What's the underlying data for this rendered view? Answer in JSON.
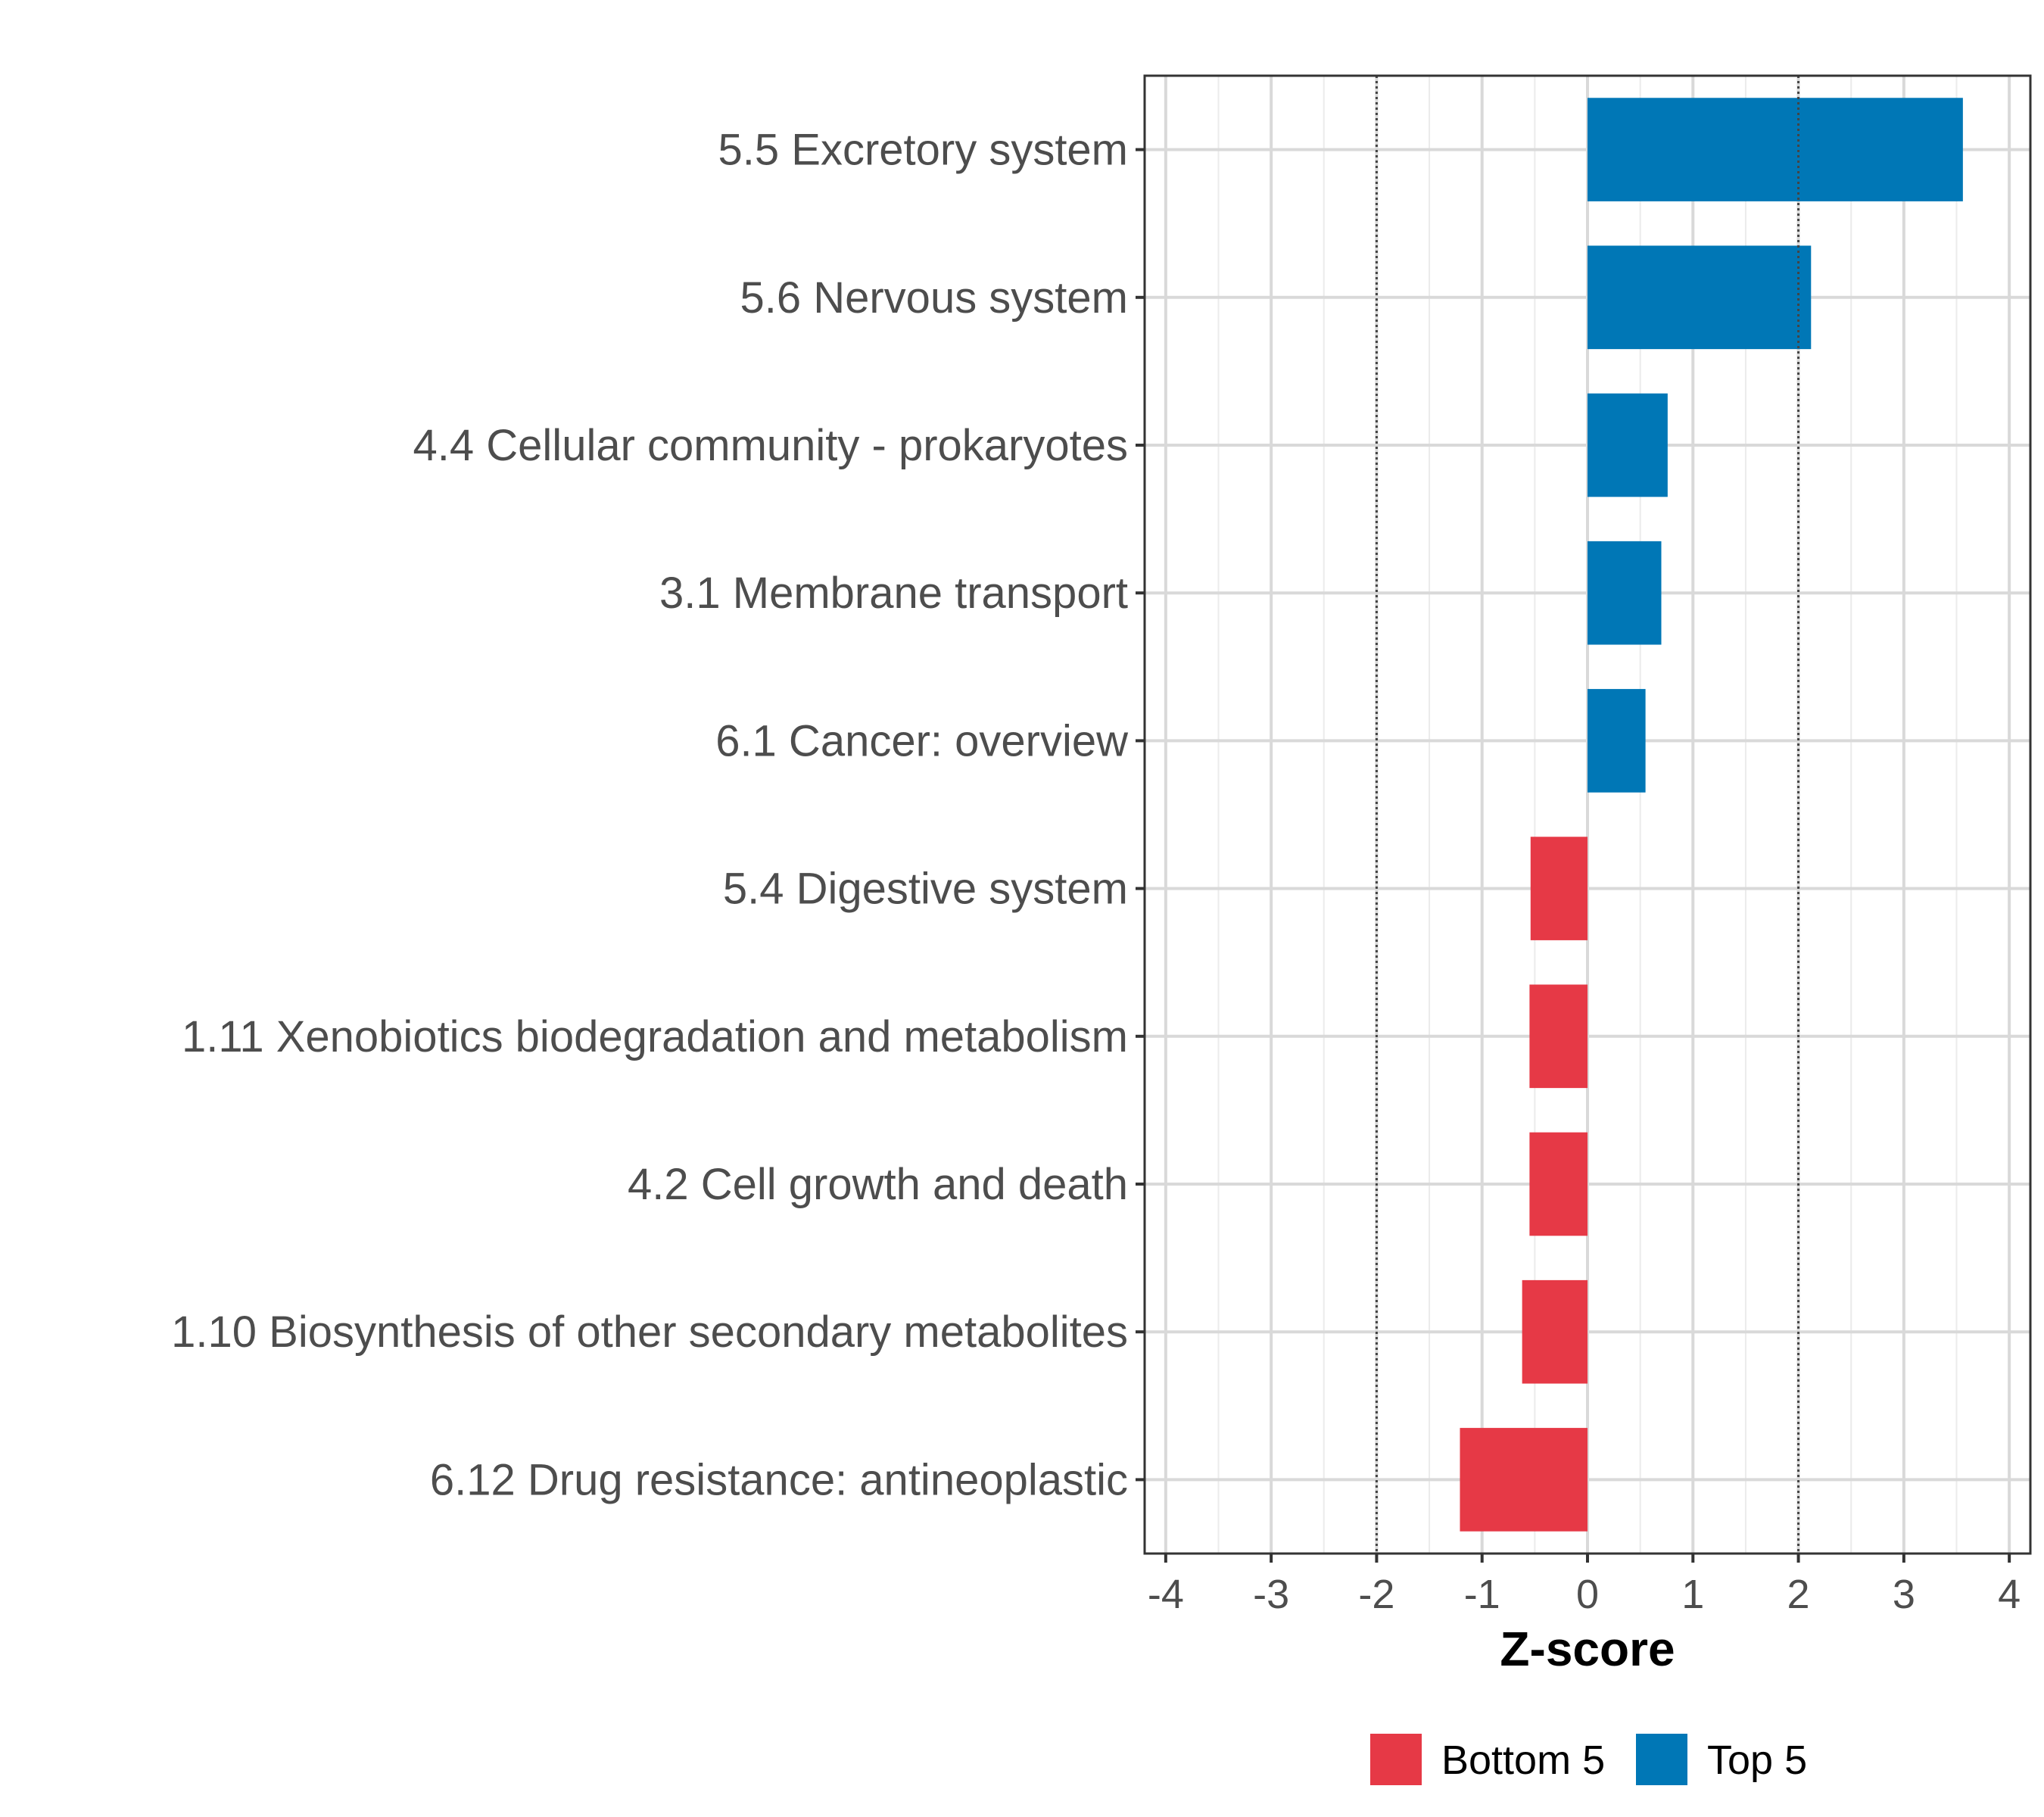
{
  "chart_data": {
    "type": "bar",
    "orientation": "horizontal",
    "title": "",
    "xlabel": "Z-score",
    "ylabel": "",
    "xlim": [
      -4.2,
      4.2
    ],
    "xticks": [
      -4,
      -3,
      -2,
      -1,
      0,
      1,
      2,
      3,
      4
    ],
    "xtick_labels": [
      "-4",
      "-3",
      "-2",
      "-1",
      "0",
      "1",
      "2",
      "3",
      "4"
    ],
    "reference_lines": [
      -2,
      2
    ],
    "grid": true,
    "categories": [
      "5.5 Excretory system",
      "5.6 Nervous system",
      "4.4 Cellular community - prokaryotes",
      "3.1 Membrane transport",
      "6.1 Cancer: overview",
      "5.4 Digestive system",
      "1.11 Xenobiotics biodegradation and metabolism",
      "4.2 Cell growth and death",
      "1.10 Biosynthesis of other secondary metabolites",
      "6.12 Drug resistance: antineoplastic"
    ],
    "values": [
      3.56,
      2.12,
      0.76,
      0.7,
      0.55,
      -0.54,
      -0.55,
      -0.55,
      -0.62,
      -1.21
    ],
    "groups": [
      "Top 5",
      "Top 5",
      "Top 5",
      "Top 5",
      "Top 5",
      "Bottom 5",
      "Bottom 5",
      "Bottom 5",
      "Bottom 5",
      "Bottom 5"
    ],
    "legend": [
      {
        "label": "Bottom 5",
        "color": "#e63946"
      },
      {
        "label": "Top 5",
        "color": "#0077b6"
      }
    ],
    "legend_position": "bottom"
  }
}
